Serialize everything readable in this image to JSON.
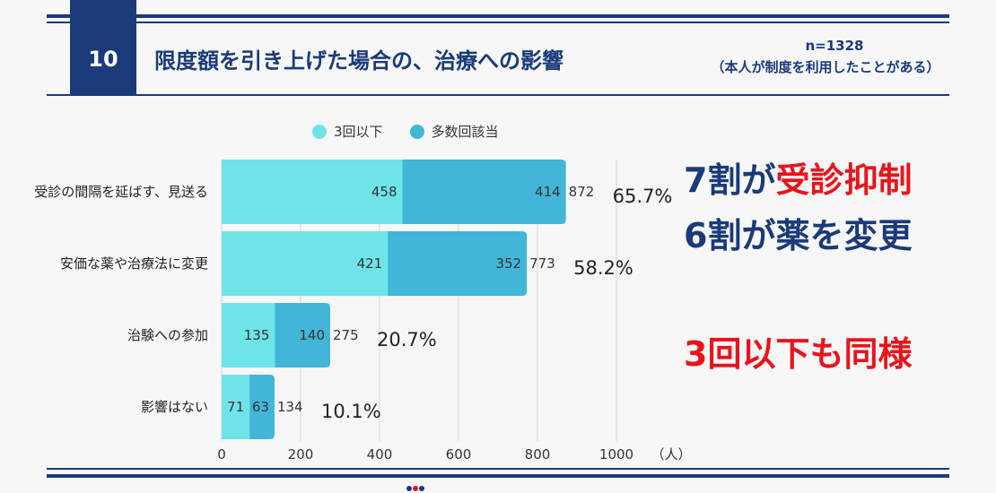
{
  "header": {
    "number": "10",
    "title": "限度額を引き上げた場合の、治療への影響",
    "n_label": "n=1328",
    "subtitle": "（本人が制度を利用したことがある）"
  },
  "legend": [
    {
      "label": "3回以下",
      "color": "#6ee4e8"
    },
    {
      "label": "多数回該当",
      "color": "#41b6d8"
    }
  ],
  "callouts": {
    "line1_prefix": "7割が",
    "line1_highlight": "受診抑制",
    "line2": "6割が薬を変更",
    "line3": "3回以下も同様"
  },
  "axis_unit": "（人）",
  "chart_data": {
    "type": "bar",
    "orientation": "horizontal",
    "stacked": true,
    "categories": [
      "受診の間隔を延ばす、見送る",
      "安価な薬や治療法に変更",
      "治験への参加",
      "影響はない"
    ],
    "series": [
      {
        "name": "3回以下",
        "values": [
          458,
          421,
          135,
          71
        ],
        "color": "#6ee4e8"
      },
      {
        "name": "多数回該当",
        "values": [
          414,
          352,
          140,
          63
        ],
        "color": "#41b6d8"
      }
    ],
    "totals": [
      872,
      773,
      275,
      134
    ],
    "percentages": [
      "65.7%",
      "58.2%",
      "20.7%",
      "10.1%"
    ],
    "xlim": [
      0,
      1000
    ],
    "xticks": [
      0,
      200,
      400,
      600,
      800,
      1000
    ],
    "tick_labels": [
      "0",
      "200",
      "400",
      "600",
      "800",
      "1000"
    ],
    "xlabel": "（人）",
    "grid": true
  }
}
